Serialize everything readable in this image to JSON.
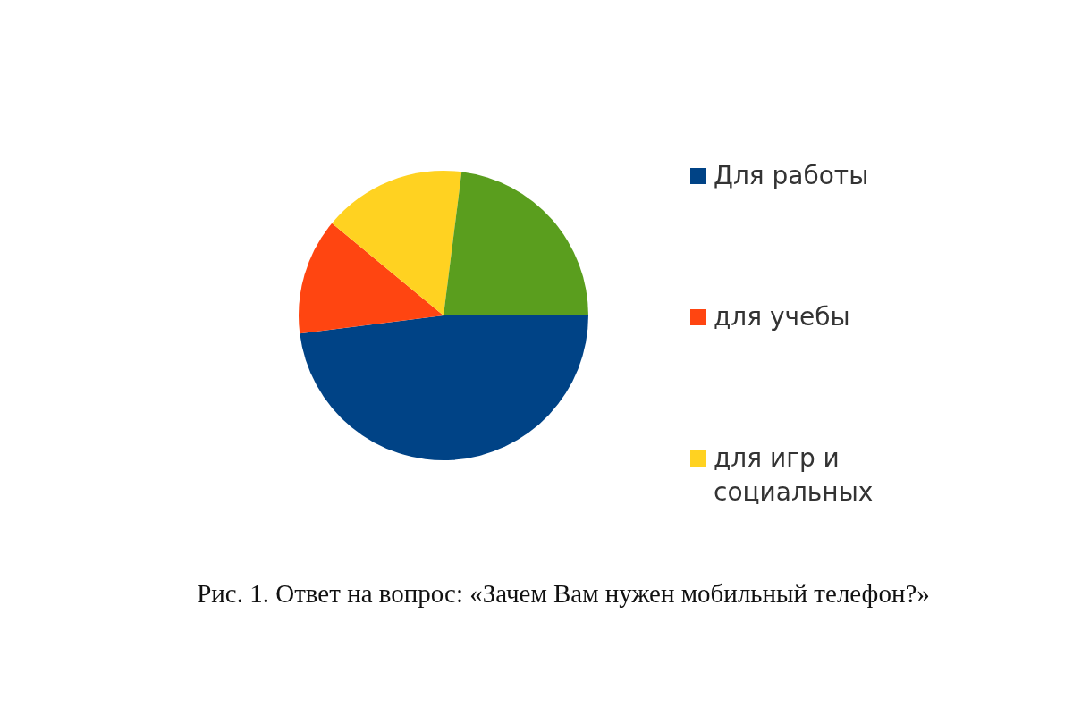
{
  "chart_data": {
    "type": "pie",
    "categories": [
      "Для работы",
      "для учебы",
      "для игр и социальных",
      null
    ],
    "values": [
      48,
      13,
      16,
      23
    ],
    "colors": [
      "#004386",
      "#ff4511",
      "#ffd221",
      "#5a9e1e"
    ],
    "legend": "right",
    "annotations": [
      "Рис. 1. Ответ на вопрос: «Зачем Вам нужен мобильный телефон?»"
    ]
  }
}
